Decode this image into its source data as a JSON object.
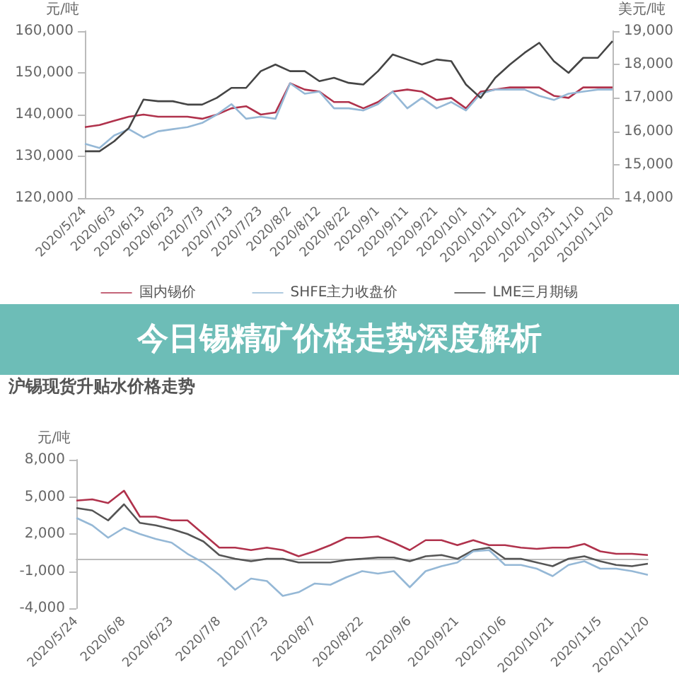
{
  "chart_data": [
    {
      "type": "line",
      "ylabel": "元/吨",
      "y2label": "美元/吨",
      "legend": "bottom",
      "annotations": [
        "今日锡精矿价格走势深度解析"
      ],
      "categories": [
        "2020/5/24",
        null,
        "2020/6/3",
        null,
        "2020/6/13",
        null,
        "2020/6/23",
        null,
        "2020/7/3",
        null,
        "2020/7/13",
        null,
        "2020/7/23",
        null,
        "2020/8/2",
        null,
        "2020/8/12",
        null,
        "2020/8/22",
        null,
        "2020/9/1",
        null,
        "2020/9/11",
        null,
        "2020/9/21",
        null,
        "2020/10/1",
        null,
        "2020/10/11",
        null,
        "2020/10/21",
        null,
        "2020/10/31",
        null,
        "2020/11/10",
        null,
        "2020/11/20"
      ],
      "ylim": [
        120000,
        160000
      ],
      "yticks": [
        {
          "value": 120000,
          "label": "120,000"
        },
        {
          "value": 130000,
          "label": "130,000"
        },
        {
          "value": 140000,
          "label": "140,000"
        },
        {
          "value": 150000,
          "label": "150,000"
        },
        {
          "value": 160000,
          "label": "160,000"
        }
      ],
      "y2lim": [
        14000,
        19000
      ],
      "y2ticks": [
        {
          "value": 14000,
          "label": "14,000"
        },
        {
          "value": 15000,
          "label": "15,000"
        },
        {
          "value": 16000,
          "label": "16,000"
        },
        {
          "value": 17000,
          "label": "17,000"
        },
        {
          "value": 18000,
          "label": "18,000"
        },
        {
          "value": 19000,
          "label": "19,000"
        }
      ],
      "series": [
        {
          "name": "国内锡价",
          "color": "#b0324c",
          "values": [
            137000,
            137500,
            138500,
            139500,
            140000,
            139500,
            139500,
            139500,
            139000,
            140000,
            141500,
            142000,
            140000,
            140500,
            147500,
            146000,
            145500,
            143000,
            143000,
            141500,
            143000,
            145500,
            146000,
            145500,
            143500,
            144000,
            141500,
            145500,
            146000,
            146500,
            146500,
            146500,
            144500,
            144000,
            146500,
            146500,
            146500
          ]
        },
        {
          "name": "SHFE主力收盘价",
          "color": "#95b8d6",
          "values": [
            133000,
            132000,
            135000,
            136500,
            134500,
            136000,
            136500,
            137000,
            138000,
            140000,
            142500,
            139000,
            139500,
            139000,
            147500,
            145000,
            145500,
            141500,
            141500,
            141000,
            142500,
            145500,
            141500,
            144000,
            141500,
            143000,
            141000,
            145000,
            146000,
            146000,
            146000,
            144500,
            143500,
            145000,
            145500,
            146000,
            146000
          ]
        },
        {
          "name": "LME三月期锡",
          "color": "#454545",
          "axis": "y2",
          "values": [
            15400,
            15400,
            15700,
            16100,
            16950,
            16900,
            16900,
            16800,
            16800,
            17000,
            17300,
            17300,
            17800,
            18000,
            17800,
            17800,
            17500,
            17600,
            17450,
            17400,
            17800,
            18300,
            18150,
            18000,
            18150,
            18100,
            17400,
            17000,
            17600,
            18000,
            18350,
            18650,
            18100,
            17750,
            18200,
            18200,
            18700
          ]
        }
      ]
    },
    {
      "type": "line",
      "title": "沪锡现货升贴水价格走势",
      "ylabel": "元/吨",
      "categories": [
        "2020/5/24",
        null,
        null,
        "2020/6/8",
        null,
        null,
        "2020/6/23",
        null,
        null,
        "2020/7/8",
        null,
        null,
        "2020/7/23",
        null,
        null,
        "2020/8/7",
        null,
        null,
        "2020/8/22",
        null,
        null,
        "2020/9/6",
        null,
        null,
        "2020/9/21",
        null,
        null,
        "2020/10/6",
        null,
        null,
        "2020/10/21",
        null,
        null,
        "2020/11/5",
        null,
        null,
        "2020/11/20"
      ],
      "ylim": [
        -4000,
        8000
      ],
      "yticks": [
        {
          "value": -4000,
          "label": "-4,000"
        },
        {
          "value": -1000,
          "label": "-1,000"
        },
        {
          "value": 2000,
          "label": "2,000"
        },
        {
          "value": 5000,
          "label": "5,000"
        },
        {
          "value": 8000,
          "label": "8,000"
        }
      ],
      "series": [
        {
          "color": "#b0324c",
          "values": [
            4700,
            4800,
            4500,
            5500,
            3400,
            3400,
            3100,
            3100,
            2000,
            900,
            900,
            700,
            900,
            700,
            200,
            600,
            1100,
            1700,
            1700,
            1800,
            1300,
            700,
            1500,
            1500,
            1100,
            1500,
            1100,
            1100,
            900,
            800,
            900,
            900,
            1200,
            600,
            400,
            400,
            300
          ]
        },
        {
          "color": "#555555",
          "values": [
            4100,
            3900,
            3100,
            4400,
            2900,
            2700,
            2400,
            2000,
            1400,
            300,
            0,
            -200,
            0,
            0,
            -300,
            -300,
            -300,
            -100,
            0,
            100,
            100,
            -200,
            200,
            300,
            0,
            700,
            900,
            0,
            0,
            -300,
            -600,
            0,
            200,
            -200,
            -500,
            -600,
            -400
          ]
        },
        {
          "color": "#95b8d6",
          "values": [
            3300,
            2700,
            1700,
            2500,
            2000,
            1600,
            1300,
            400,
            -300,
            -1300,
            -2500,
            -1600,
            -1800,
            -3000,
            -2700,
            -2000,
            -2100,
            -1500,
            -1000,
            -1200,
            -1000,
            -2300,
            -1000,
            -600,
            -300,
            600,
            700,
            -500,
            -500,
            -800,
            -1400,
            -500,
            -200,
            -800,
            -800,
            -1000,
            -1300
          ]
        }
      ]
    }
  ]
}
